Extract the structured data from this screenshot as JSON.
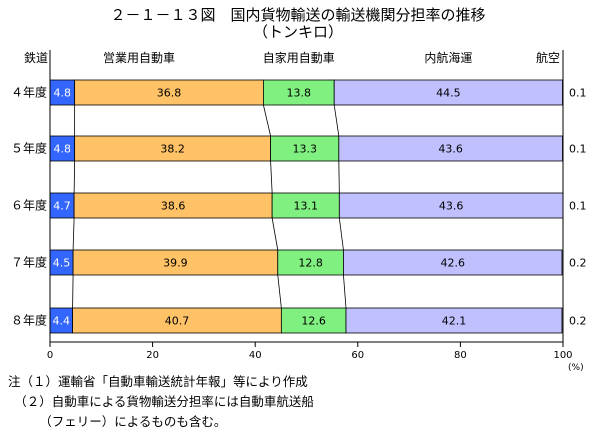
{
  "chart_data": {
    "type": "bar",
    "orientation": "horizontal",
    "stacked": true,
    "title": "２－１－１３図　国内貨物輸送の輸送機関分担率の推移",
    "subtitle": "（トンキロ）",
    "categories": [
      "４年度",
      "５年度",
      "６年度",
      "７年度",
      "８年度"
    ],
    "series": [
      {
        "name": "鉄道",
        "values": [
          4.8,
          4.8,
          4.7,
          4.5,
          4.4
        ],
        "color": "#3366ff"
      },
      {
        "name": "営業用自動車",
        "values": [
          36.8,
          38.2,
          38.6,
          39.9,
          40.7
        ],
        "color": "#ffc266"
      },
      {
        "name": "自家用自動車",
        "values": [
          13.8,
          13.3,
          13.1,
          12.8,
          12.6
        ],
        "color": "#80f080"
      },
      {
        "name": "内航海運",
        "values": [
          44.5,
          43.6,
          43.6,
          42.6,
          42.1
        ],
        "color": "#c0c0ff"
      },
      {
        "name": "航空",
        "values": [
          0.1,
          0.1,
          0.1,
          0.2,
          0.2
        ],
        "color": "#000000"
      }
    ],
    "series_labels": [
      [
        "4.8",
        "4.8",
        "4.7",
        "4.5",
        "4.4"
      ],
      [
        "36.8",
        "38.2",
        "38.6",
        "39.9",
        "40.7"
      ],
      [
        "13.8",
        "13.3",
        "13.1",
        "12.8",
        "12.6"
      ],
      [
        "44.5",
        "43.6",
        "43.6",
        "42.6",
        "42.1"
      ],
      [
        "0.1",
        "0.1",
        "0.1",
        "0.2",
        "0.2"
      ]
    ],
    "xlim": [
      0,
      100
    ],
    "xticks": [
      "0",
      "20",
      "40",
      "60",
      "80",
      "100"
    ],
    "xunit": "(%)",
    "grid": false,
    "legend": "top, series names above bars",
    "connector_lines": true
  },
  "notes": [
    "注（１）運輸省「自動車輸送統計年報」等により作成",
    "　（２）自動車による貨物輸送分担率には自動車航送船",
    "　　　（フェリー）によるものも含む。"
  ]
}
